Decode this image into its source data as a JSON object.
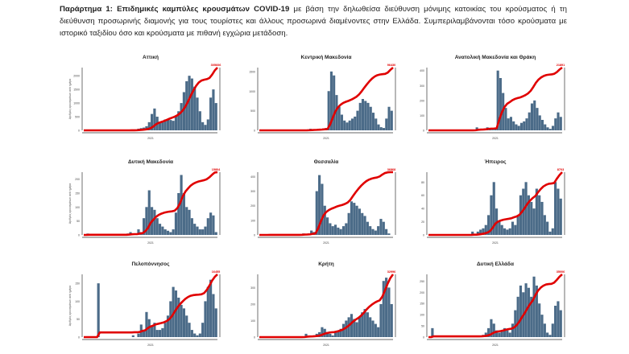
{
  "intro": {
    "bold": "Παράρτημα 1:  Επιδημικές καμπύλες κρουσμάτων COVID-19",
    "rest": " με βάση την δηλωθείσα διεύθυνση μόνιμης κατοικίας του κρούσματος ή τη διεύθυνση προσωρινής διαμονής για τους τουρίστες και άλλους προσωρινά διαμένοντες στην Ελλάδα. Συμπεριλαμβάνονται τόσο κρούσματα με ιστορικό ταξιδίου όσο και κρούσματα με πιθανή εγχώρια μετάδοση."
  },
  "colors": {
    "bars": "#4b6b88",
    "line": "#e00000"
  },
  "ylabel": "Αριθμός κρουσμάτων ανά ημέρα",
  "chart_data": [
    {
      "type": "bar+line",
      "title": "Αττική",
      "xtick": "2021",
      "yticks": [
        0,
        500,
        1000,
        1500,
        2000
      ],
      "ymax": 2300,
      "end_label": "305606",
      "bars": [
        0,
        0,
        0,
        0,
        0,
        0,
        0,
        0,
        0,
        0,
        0,
        0,
        0,
        0,
        0,
        0,
        0,
        5,
        20,
        30,
        60,
        80,
        100,
        150,
        300,
        600,
        800,
        500,
        300,
        350,
        400,
        400,
        380,
        350,
        500,
        700,
        1000,
        1400,
        1800,
        2000,
        1900,
        1600,
        1200,
        700,
        300,
        200,
        400,
        1200,
        1500,
        1000
      ]
    },
    {
      "type": "bar+line",
      "title": "Κεντρική Μακεδονία",
      "xtick": "2021",
      "yticks": [
        0,
        500,
        1000,
        1500
      ],
      "ymax": 1600,
      "end_label": "96430",
      "bars": [
        0,
        0,
        0,
        0,
        0,
        0,
        0,
        0,
        0,
        0,
        0,
        0,
        0,
        0,
        0,
        0,
        0,
        0,
        20,
        40,
        30,
        20,
        40,
        30,
        50,
        60,
        1000,
        1500,
        1400,
        900,
        600,
        400,
        250,
        200,
        250,
        300,
        350,
        500,
        700,
        800,
        750,
        700,
        600,
        450,
        300,
        150,
        80,
        60,
        300,
        600,
        500
      ]
    },
    {
      "type": "bar+line",
      "title": "Ανατολική Μακεδονία και Θράκη",
      "xtick": "2021",
      "yticks": [
        0,
        100,
        200,
        300,
        400
      ],
      "ymax": 420,
      "end_label": "21891",
      "bars": [
        0,
        0,
        0,
        0,
        0,
        0,
        0,
        0,
        0,
        0,
        0,
        0,
        0,
        0,
        0,
        0,
        0,
        5,
        20,
        10,
        5,
        10,
        20,
        10,
        5,
        10,
        400,
        350,
        250,
        150,
        80,
        90,
        60,
        40,
        30,
        50,
        60,
        80,
        120,
        180,
        200,
        150,
        100,
        70,
        40,
        20,
        10,
        30,
        80,
        120,
        90
      ]
    },
    {
      "type": "bar+line",
      "title": "Δυτική Μακεδονία",
      "xtick": "2021",
      "yticks": [
        0,
        50,
        100,
        150,
        200
      ],
      "ymax": 225,
      "end_label": "15804",
      "bars": [
        0,
        5,
        0,
        0,
        0,
        0,
        0,
        0,
        0,
        0,
        0,
        0,
        0,
        0,
        0,
        0,
        5,
        10,
        5,
        0,
        20,
        10,
        60,
        100,
        160,
        100,
        90,
        60,
        40,
        30,
        20,
        15,
        10,
        20,
        80,
        150,
        215,
        150,
        100,
        90,
        60,
        40,
        30,
        20,
        20,
        30,
        60,
        80,
        70,
        10
      ]
    },
    {
      "type": "bar+line",
      "title": "Θεσσαλία",
      "xtick": "2021",
      "yticks": [
        0,
        100,
        200,
        300,
        400
      ],
      "ymax": 430,
      "end_label": "36868",
      "bars": [
        0,
        0,
        0,
        5,
        0,
        0,
        0,
        0,
        0,
        0,
        0,
        0,
        0,
        0,
        0,
        5,
        10,
        5,
        10,
        30,
        20,
        300,
        410,
        350,
        200,
        120,
        80,
        60,
        70,
        50,
        40,
        60,
        80,
        150,
        230,
        220,
        200,
        180,
        150,
        130,
        90,
        60,
        40,
        30,
        60,
        110,
        90,
        40,
        10,
        0
      ]
    },
    {
      "type": "bar+line",
      "title": "Ήπειρος",
      "xtick": "2021",
      "yticks": [
        0,
        20,
        40,
        60,
        80
      ],
      "ymax": 95,
      "end_label": "8703",
      "bars": [
        0,
        0,
        0,
        0,
        0,
        0,
        0,
        0,
        0,
        0,
        0,
        0,
        0,
        0,
        0,
        0,
        5,
        0,
        5,
        8,
        10,
        15,
        30,
        60,
        80,
        40,
        20,
        15,
        10,
        8,
        10,
        20,
        15,
        30,
        60,
        70,
        80,
        60,
        50,
        40,
        70,
        60,
        50,
        30,
        20,
        5,
        10,
        80,
        70,
        55
      ]
    },
    {
      "type": "bar+line",
      "title": "Πελοπόννησος",
      "xtick": "2021",
      "yticks": [
        0,
        50,
        100,
        150
      ],
      "ymax": 175,
      "end_label": "16455",
      "bars": [
        0,
        0,
        0,
        0,
        0,
        150,
        0,
        0,
        0,
        0,
        0,
        0,
        0,
        0,
        0,
        0,
        0,
        0,
        5,
        0,
        10,
        35,
        20,
        70,
        50,
        30,
        40,
        20,
        20,
        25,
        40,
        60,
        100,
        140,
        130,
        110,
        90,
        80,
        60,
        40,
        20,
        10,
        5,
        10,
        40,
        100,
        140,
        160,
        120,
        80
      ]
    },
    {
      "type": "bar+line",
      "title": "Κρήτη",
      "xtick": "2021",
      "yticks": [
        0,
        100,
        200,
        300
      ],
      "ymax": 380,
      "end_label": "32996",
      "bars": [
        0,
        0,
        0,
        0,
        0,
        0,
        0,
        0,
        0,
        0,
        0,
        0,
        0,
        0,
        0,
        0,
        5,
        20,
        10,
        5,
        10,
        20,
        30,
        60,
        50,
        30,
        20,
        10,
        30,
        40,
        50,
        80,
        100,
        120,
        140,
        110,
        90,
        120,
        150,
        170,
        150,
        120,
        100,
        80,
        60,
        200,
        340,
        360,
        300,
        200
      ]
    },
    {
      "type": "bar+line",
      "title": "Δυτική Ελλάδα",
      "xtick": "2021",
      "yticks": [
        0,
        50,
        100,
        150,
        200,
        250
      ],
      "ymax": 280,
      "end_label": "35006",
      "bars": [
        0,
        40,
        0,
        0,
        0,
        0,
        0,
        0,
        0,
        0,
        0,
        0,
        0,
        0,
        0,
        0,
        0,
        0,
        0,
        5,
        10,
        20,
        40,
        80,
        60,
        30,
        20,
        30,
        40,
        30,
        20,
        60,
        120,
        180,
        230,
        200,
        240,
        220,
        180,
        270,
        230,
        150,
        100,
        60,
        20,
        10,
        60,
        140,
        160,
        120
      ]
    }
  ]
}
